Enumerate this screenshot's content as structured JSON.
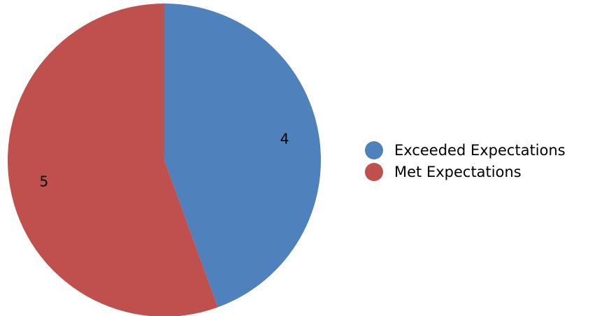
{
  "chart_data": {
    "type": "pie",
    "title": "",
    "slices": [
      {
        "label": "Exceeded Expectations",
        "value": 4,
        "data_label": "4",
        "color": "#4f81bd"
      },
      {
        "label": "Met Expectations",
        "value": 5,
        "data_label": "5",
        "color": "#c0504d"
      }
    ],
    "start_angle_deg": 0,
    "direction": "clockwise",
    "legend": {
      "position": "right",
      "items": [
        {
          "label": "Exceeded Expectations",
          "color": "#4f81bd"
        },
        {
          "label": "Met Expectations",
          "color": "#c0504d"
        }
      ]
    }
  }
}
